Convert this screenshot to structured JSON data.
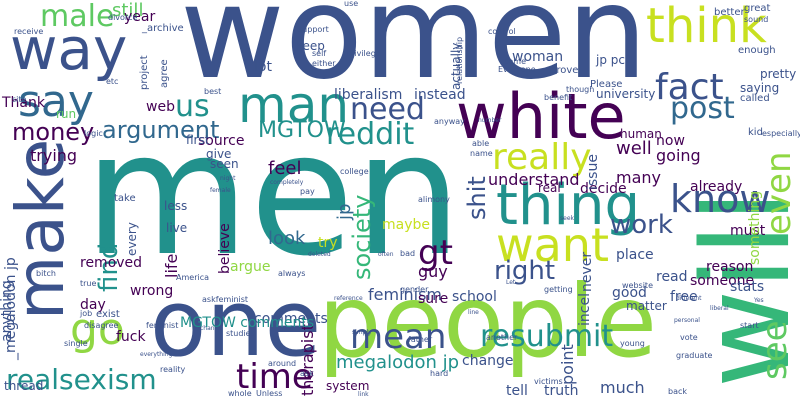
{
  "palette": {
    "dark_purple": "#440154",
    "indigo": "#3b528b",
    "blue": "#31688e",
    "teal": "#21918c",
    "sea_green": "#35b779",
    "green": "#5ec962",
    "lime": "#90d743",
    "yellow_green": "#c8e020",
    "yellow": "#fde725"
  },
  "words": [
    "women",
    "men",
    "will",
    "people",
    "one",
    "white",
    "make",
    "way",
    "man",
    "think",
    "thing",
    "want",
    "go",
    "say",
    "fact",
    "know",
    "really",
    "time",
    "realsexism",
    "post",
    "see",
    "gt",
    "mean",
    "resubmit",
    "reddit",
    "MGTOW",
    "us",
    "argument",
    "even",
    "male",
    "need",
    "work",
    "right",
    "money",
    "find",
    "society",
    "shit",
    "liberalism",
    "still",
    "year",
    "feminism",
    "megalodon jp",
    "jp",
    "school",
    "point",
    "comments",
    "look",
    "guy",
    "sure",
    "woman",
    "keep",
    "lot",
    "web",
    "source",
    "Thank",
    "run",
    "trying",
    "well",
    "going",
    "now",
    "human",
    "many",
    "someone",
    "already",
    "must",
    "reason",
    "understand",
    "decide",
    "real",
    "feel",
    "maybe",
    "try",
    "argue",
    "believe",
    "wrong",
    "day",
    "removed",
    "therapist",
    "system",
    "fuck",
    "life",
    "stats",
    "free",
    "read",
    "good",
    "incel",
    "much",
    "change",
    "tell",
    "truth",
    "place",
    "never",
    "issue",
    "instead",
    "actually",
    "university",
    "pretty",
    "saying",
    "called",
    "enough",
    "something",
    "kid",
    "website",
    "jp pc",
    "better",
    "great",
    "sound",
    "especially",
    "matter",
    "anything",
    "America",
    "exist",
    "thread",
    "give",
    "first",
    "seen",
    "less",
    "live",
    "every",
    "project",
    "agree",
    "divorce",
    "_archive",
    "receive",
    "site",
    "logic",
    "etc",
    "best",
    "support",
    "self",
    "either",
    "privilege",
    "relationship",
    "control",
    "come",
    "Everyone",
    "prove",
    "Please",
    "benefit",
    "though",
    "anyway",
    "able",
    "name",
    "number",
    "college",
    "alimony",
    "pay",
    "female",
    "completely",
    "night",
    "bitch",
    "true",
    "job",
    "disagree",
    "single",
    "everything",
    "chance",
    "reality",
    "studies",
    "around",
    "whole",
    "Unless",
    "link",
    "hard",
    "victims",
    "back",
    "graduate",
    "start",
    "vote",
    "young",
    "personal",
    "different",
    "liberal",
    "Yes",
    "seek",
    "getting",
    "Let",
    "gender",
    "reference",
    "askfeminist",
    "deleted",
    "always",
    "bad",
    "often",
    "feminist",
    "simply",
    "line",
    "father",
    "another",
    "ask",
    "_megalodon jp",
    "take",
    "use",
    "MGTOW comments"
  ]
}
